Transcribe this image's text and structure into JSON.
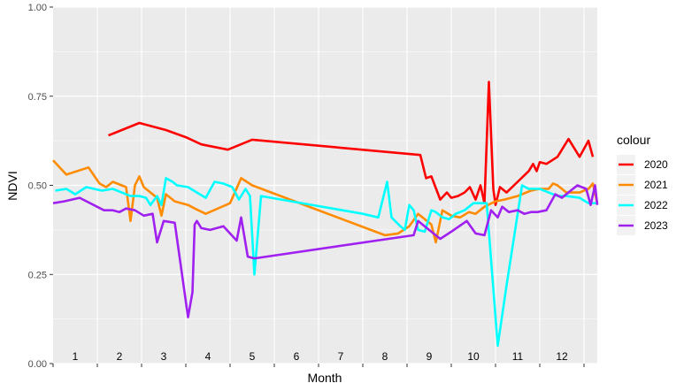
{
  "chart_data": {
    "type": "line",
    "xlabel": "Month",
    "ylabel": "NDVI",
    "ylim": [
      0,
      1
    ],
    "y_ticks": [
      "0.00",
      "0.25",
      "0.50",
      "0.75",
      "1.00"
    ],
    "y_tick_values": [
      0,
      0.25,
      0.5,
      0.75,
      1
    ],
    "x_range": [
      0,
      12.3
    ],
    "x_month_labels": [
      "1",
      "2",
      "3",
      "4",
      "5",
      "6",
      "7",
      "8",
      "9",
      "10",
      "11",
      "12"
    ],
    "background": "#ebebeb",
    "grid": true,
    "legend": {
      "title": "colour",
      "position": "right"
    },
    "series": [
      {
        "name": "2020",
        "color": "#ff0000",
        "x": [
          1.25,
          1.95,
          2.55,
          3.0,
          3.35,
          3.95,
          4.5,
          8.3,
          8.43,
          8.55,
          8.75,
          8.9,
          9.0,
          9.15,
          9.3,
          9.42,
          9.55,
          9.66,
          9.75,
          9.85,
          9.95,
          10.0,
          10.1,
          10.25,
          10.5,
          10.75,
          10.85,
          10.93,
          11.0,
          11.15,
          11.4,
          11.65,
          11.9,
          12.1,
          12.2
        ],
        "y": [
          0.64,
          0.675,
          0.655,
          0.635,
          0.615,
          0.6,
          0.628,
          0.585,
          0.52,
          0.525,
          0.46,
          0.48,
          0.465,
          0.47,
          0.48,
          0.495,
          0.46,
          0.5,
          0.45,
          0.79,
          0.49,
          0.445,
          0.495,
          0.48,
          0.51,
          0.54,
          0.56,
          0.54,
          0.565,
          0.56,
          0.58,
          0.63,
          0.58,
          0.625,
          0.58
        ]
      },
      {
        "name": "2021",
        "color": "#ff8c00",
        "x": [
          0.0,
          0.3,
          0.8,
          1.05,
          1.2,
          1.35,
          1.55,
          1.65,
          1.75,
          1.85,
          1.95,
          2.05,
          2.35,
          2.45,
          2.55,
          2.65,
          2.75,
          3.05,
          3.2,
          3.45,
          4.0,
          4.25,
          4.5,
          7.5,
          7.8,
          8.05,
          8.25,
          8.4,
          8.55,
          8.65,
          8.8,
          9.0,
          9.2,
          9.4,
          9.55,
          9.75,
          10.0,
          10.2,
          10.5,
          10.8,
          11.0,
          11.2,
          11.3,
          11.4,
          11.6,
          11.9,
          12.1,
          12.2,
          12.3
        ],
        "y": [
          0.57,
          0.53,
          0.55,
          0.505,
          0.495,
          0.51,
          0.5,
          0.495,
          0.4,
          0.5,
          0.525,
          0.495,
          0.465,
          0.415,
          0.475,
          0.465,
          0.455,
          0.445,
          0.435,
          0.42,
          0.45,
          0.52,
          0.5,
          0.36,
          0.365,
          0.385,
          0.42,
          0.405,
          0.39,
          0.34,
          0.43,
          0.415,
          0.41,
          0.425,
          0.42,
          0.44,
          0.455,
          0.46,
          0.47,
          0.485,
          0.49,
          0.49,
          0.505,
          0.5,
          0.48,
          0.48,
          0.49,
          0.505,
          0.45
        ]
      },
      {
        "name": "2022",
        "color": "#00ffff",
        "x": [
          0.05,
          0.3,
          0.5,
          0.75,
          1.1,
          1.35,
          1.55,
          1.75,
          1.95,
          2.1,
          2.2,
          2.35,
          2.45,
          2.55,
          2.7,
          2.8,
          3.05,
          3.25,
          3.45,
          3.65,
          3.85,
          4.05,
          4.2,
          4.35,
          4.45,
          4.55,
          4.7,
          7.0,
          7.35,
          7.55,
          7.65,
          7.85,
          7.95,
          8.05,
          8.15,
          8.25,
          8.4,
          8.55,
          8.65,
          8.8,
          8.95,
          9.1,
          9.3,
          9.5,
          9.8,
          10.05,
          10.25,
          10.6,
          10.75,
          11.0,
          11.2,
          11.4,
          11.6,
          11.9,
          12.1,
          12.3
        ],
        "y": [
          0.485,
          0.49,
          0.475,
          0.495,
          0.485,
          0.49,
          0.48,
          0.47,
          0.47,
          0.465,
          0.445,
          0.47,
          0.445,
          0.52,
          0.51,
          0.5,
          0.495,
          0.48,
          0.465,
          0.51,
          0.505,
          0.495,
          0.46,
          0.49,
          0.47,
          0.25,
          0.47,
          0.42,
          0.41,
          0.51,
          0.41,
          0.385,
          0.375,
          0.445,
          0.43,
          0.375,
          0.37,
          0.43,
          0.425,
          0.41,
          0.405,
          0.42,
          0.43,
          0.45,
          0.45,
          0.05,
          0.22,
          0.5,
          0.49,
          0.49,
          0.48,
          0.47,
          0.47,
          0.465,
          0.45,
          0.45
        ]
      },
      {
        "name": "2023",
        "color": "#a020f0",
        "x": [
          0.0,
          0.25,
          0.6,
          1.15,
          1.35,
          1.5,
          1.65,
          1.85,
          2.05,
          2.25,
          2.35,
          2.5,
          2.75,
          3.05,
          3.15,
          3.2,
          3.25,
          3.35,
          3.55,
          3.85,
          4.15,
          4.25,
          4.4,
          4.55,
          8.15,
          8.25,
          8.75,
          9.0,
          9.35,
          9.55,
          9.75,
          9.9,
          10.05,
          10.15,
          10.3,
          10.5,
          10.65,
          10.8,
          10.95,
          11.15,
          11.35,
          11.5,
          11.7,
          11.85,
          12.05,
          12.15,
          12.25,
          12.3
        ],
        "y": [
          0.45,
          0.455,
          0.465,
          0.43,
          0.43,
          0.425,
          0.435,
          0.43,
          0.415,
          0.42,
          0.34,
          0.4,
          0.395,
          0.13,
          0.2,
          0.39,
          0.4,
          0.38,
          0.375,
          0.385,
          0.345,
          0.41,
          0.3,
          0.295,
          0.36,
          0.4,
          0.35,
          0.37,
          0.4,
          0.365,
          0.36,
          0.43,
          0.41,
          0.44,
          0.425,
          0.43,
          0.42,
          0.425,
          0.425,
          0.43,
          0.475,
          0.465,
          0.485,
          0.5,
          0.49,
          0.445,
          0.5,
          0.445
        ]
      }
    ]
  }
}
